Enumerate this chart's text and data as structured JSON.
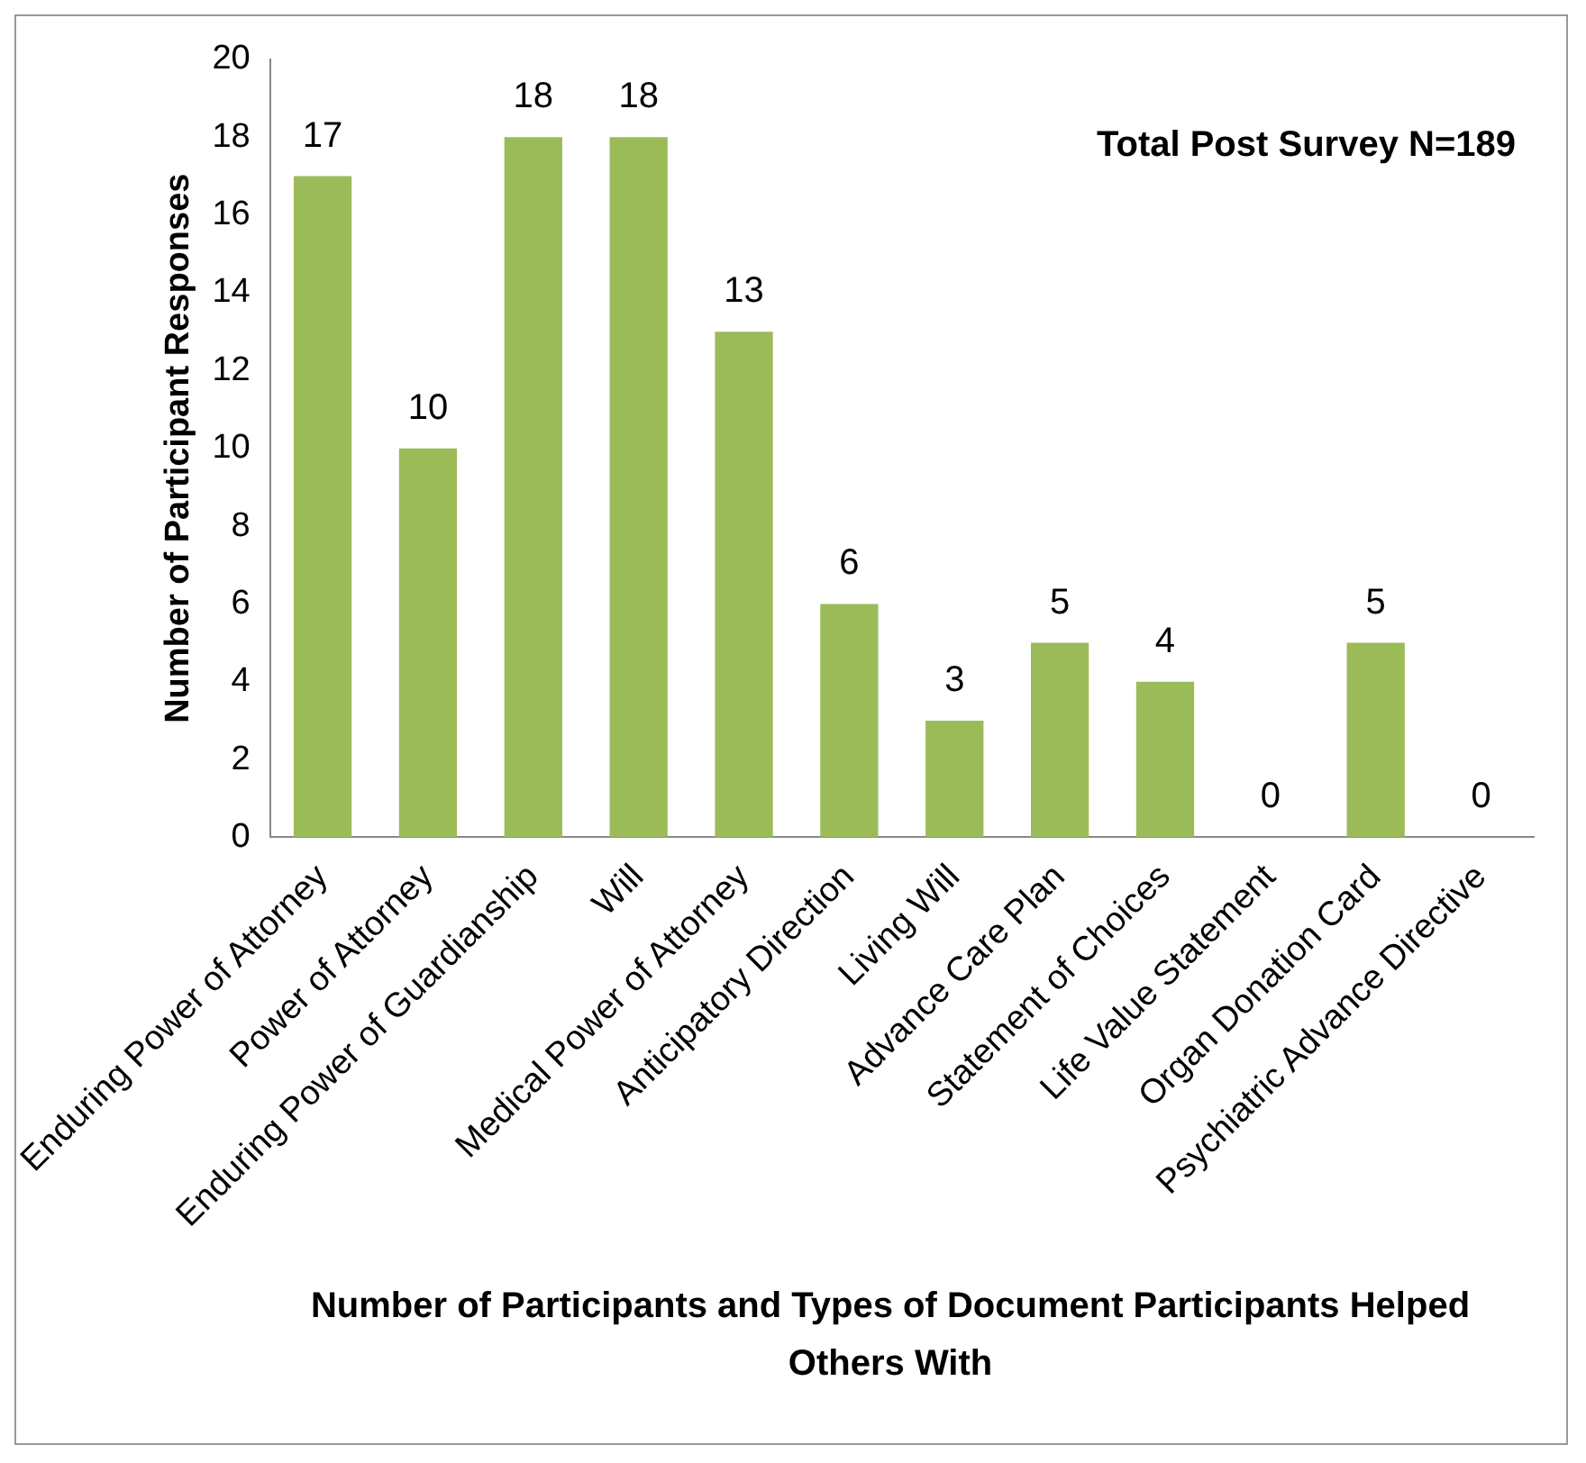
{
  "chart_data": {
    "type": "bar",
    "xlabel": "Number of Participants and Types of Document Participants Helped Others With",
    "ylabel": "Number of Participant Responses",
    "categories": [
      "Enduring Power of Attorney",
      "Power of Attorney",
      "Enduring Power of Guardianship",
      "Will",
      "Medical Power of Attorney",
      "Anticipatory Direction",
      "Living Will",
      "Advance Care Plan",
      "Statement of Choices",
      "Life Value Statement",
      "Organ Donation Card",
      "Psychiatric Advance Directive"
    ],
    "values": [
      17,
      10,
      18,
      18,
      13,
      6,
      3,
      5,
      4,
      0,
      5,
      0
    ],
    "color": "#9bbb59",
    "ylim": [
      0,
      20
    ],
    "yticks": [
      0,
      2,
      4,
      6,
      8,
      10,
      12,
      14,
      16,
      18,
      20
    ],
    "grid": false,
    "legend": false,
    "data_labels": true,
    "annotations": [
      "Total Post Survey N=189"
    ]
  }
}
